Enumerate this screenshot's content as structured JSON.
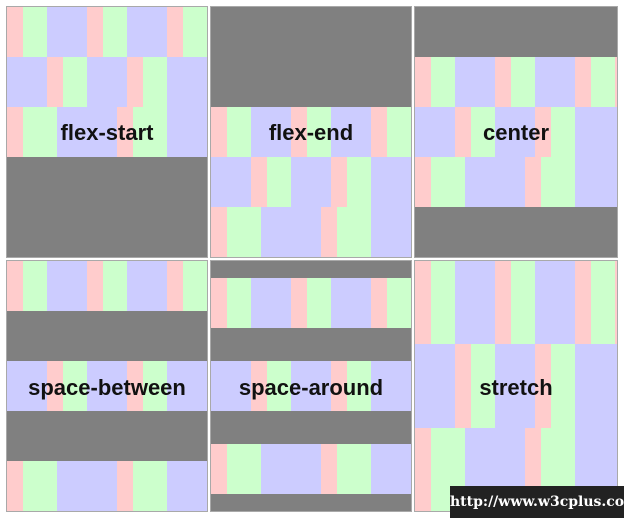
{
  "panels": [
    {
      "label": "flex-start"
    },
    {
      "label": "flex-end"
    },
    {
      "label": "center"
    },
    {
      "label": "space-between"
    },
    {
      "label": "space-around"
    },
    {
      "label": "stretch"
    }
  ],
  "watermark": "http://www.w3cplus.com",
  "colors": {
    "background": "#808080",
    "pink": "#ffcccc",
    "green": "#ccffcc",
    "blue": "#ccccff"
  }
}
